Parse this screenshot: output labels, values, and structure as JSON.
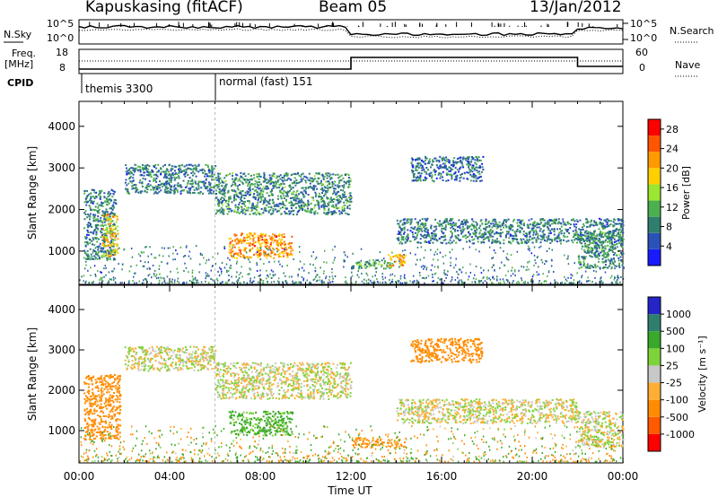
{
  "header": {
    "station": "Kapuskasing (fitACF)",
    "beam": "Beam 05",
    "date": "13/Jan/2012"
  },
  "status_panels": {
    "left_labels": [
      "N.Sky",
      "Freq.",
      "[MHz]",
      "CPID"
    ],
    "right_labels": [
      "N.Search",
      "Nave"
    ],
    "nsky_ticks": [
      "10^5",
      "10^0"
    ],
    "freq_ticks": [
      "18",
      "8"
    ],
    "nave_ticks": [
      "60",
      "0"
    ],
    "cpid_segments": [
      {
        "label": "themis 3300",
        "start_hour": 0
      },
      {
        "label": "normal (fast) 151",
        "start_hour": 6
      }
    ]
  },
  "colors": {
    "power": [
      "#1a1aff",
      "#2a52b8",
      "#2f7f6e",
      "#4caf50",
      "#9be630",
      "#ffd000",
      "#ff9a00",
      "#ff5500",
      "#ff0000"
    ],
    "velocity": [
      "#ff0000",
      "#ff5a00",
      "#ff8c00",
      "#ffae33",
      "#c8c8c8",
      "#7fd33a",
      "#3aa82a",
      "#2f7f6e",
      "#2424c8"
    ]
  },
  "chart_data": [
    {
      "type": "heatmap",
      "title": "Power",
      "xlabel": "",
      "ylabel": "Slant Range [km]",
      "xlim": [
        0,
        24
      ],
      "ylim": [
        200,
        4600
      ],
      "x_ticks": [
        "00:00",
        "04:00",
        "08:00",
        "12:00",
        "16:00",
        "20:00",
        "00:00"
      ],
      "y_ticks": [
        "1000",
        "2000",
        "3000",
        "4000"
      ],
      "colorbar": {
        "label": "Power [dB]",
        "ticks": [
          "4",
          "8",
          "12",
          "16",
          "20",
          "24",
          "28"
        ],
        "range": [
          0,
          30
        ]
      },
      "echo_regions": [
        {
          "t0": 0.2,
          "t1": 1.6,
          "r0": 800,
          "r1": 2500,
          "value": 8
        },
        {
          "t0": 1.0,
          "t1": 1.7,
          "r0": 900,
          "r1": 1900,
          "value": 19
        },
        {
          "t0": 2.0,
          "t1": 6.0,
          "r0": 2400,
          "r1": 3100,
          "value": 8
        },
        {
          "t0": 6.0,
          "t1": 12.0,
          "r0": 1900,
          "r1": 2900,
          "value": 9
        },
        {
          "t0": 6.6,
          "t1": 9.4,
          "r0": 850,
          "r1": 1450,
          "value": 22
        },
        {
          "t0": 12.0,
          "t1": 13.8,
          "r0": 600,
          "r1": 800,
          "value": 11
        },
        {
          "t0": 13.6,
          "t1": 14.4,
          "r0": 650,
          "r1": 950,
          "value": 20
        },
        {
          "t0": 14.0,
          "t1": 24.0,
          "r0": 1200,
          "r1": 1800,
          "value": 8
        },
        {
          "t0": 14.6,
          "t1": 17.8,
          "r0": 2700,
          "r1": 3300,
          "value": 7
        },
        {
          "t0": 22.0,
          "t1": 24.0,
          "r0": 600,
          "r1": 1500,
          "value": 9
        }
      ]
    },
    {
      "type": "heatmap",
      "title": "Velocity",
      "xlabel": "Time UT",
      "ylabel": "Slant Range [km]",
      "xlim": [
        0,
        24
      ],
      "ylim": [
        200,
        4600
      ],
      "x_ticks": [
        "00:00",
        "04:00",
        "08:00",
        "12:00",
        "16:00",
        "20:00",
        "00:00"
      ],
      "y_ticks": [
        "1000",
        "2000",
        "3000",
        "4000"
      ],
      "colorbar": {
        "label": "Velocity [m s⁻¹]",
        "ticks": [
          "1000",
          "500",
          "100",
          "25",
          "-25",
          "-100",
          "-500",
          "-1000"
        ]
      },
      "echo_regions": [
        {
          "t0": 0.2,
          "t1": 1.8,
          "r0": 800,
          "r1": 2400,
          "value": -200
        },
        {
          "t0": 2.0,
          "t1": 6.0,
          "r0": 2500,
          "r1": 3100,
          "value": 0
        },
        {
          "t0": 6.0,
          "t1": 12.0,
          "r0": 1800,
          "r1": 2700,
          "value": 0
        },
        {
          "t0": 6.6,
          "t1": 9.4,
          "r0": 900,
          "r1": 1500,
          "value": 150
        },
        {
          "t0": 12.0,
          "t1": 14.4,
          "r0": 600,
          "r1": 850,
          "value": -150
        },
        {
          "t0": 14.0,
          "t1": 22.0,
          "r0": 1200,
          "r1": 1800,
          "value": 0
        },
        {
          "t0": 14.6,
          "t1": 17.8,
          "r0": 2700,
          "r1": 3300,
          "value": -300
        },
        {
          "t0": 22.0,
          "t1": 24.0,
          "r0": 600,
          "r1": 1500,
          "value": 0
        }
      ]
    }
  ]
}
